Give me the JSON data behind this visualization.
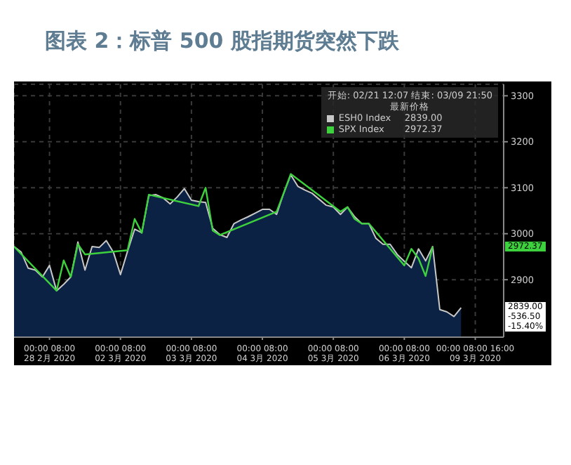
{
  "chart_data": {
    "type": "line",
    "title": "图表 2：标普 500 股指期货突然下跌",
    "categories": [
      null,
      null,
      null,
      null,
      null,
      "00:00  08:00\n28 2月 2020",
      null,
      null,
      null,
      null,
      null,
      null,
      null,
      null,
      null,
      "00:00  08:00\n02 3月 2020",
      null,
      null,
      null,
      null,
      null,
      null,
      null,
      null,
      null,
      "00:00  08:00\n03 3月 2020",
      null,
      null,
      null,
      null,
      null,
      null,
      null,
      null,
      null,
      "00:00  08:00\n04 3月 2020",
      null,
      null,
      null,
      null,
      null,
      null,
      null,
      null,
      null,
      "00:00  08:00\n05 3月 2020",
      null,
      null,
      null,
      null,
      null,
      null,
      null,
      null,
      null,
      "00:00  08:00\n06 3月 2020",
      null,
      null,
      null,
      null,
      null,
      null,
      null,
      null,
      null,
      "00:00  08:00  16:00\n09 3月 2020",
      null,
      null,
      null,
      null
    ],
    "ylim": [
      2775,
      3325
    ],
    "yticks": [
      2900,
      3000,
      3100,
      3200,
      3300
    ],
    "grid": true,
    "legend": "top right",
    "legend_title": "最新价格",
    "series": [
      {
        "name": "ESH0 Index",
        "type": "area",
        "color": "#c8c8c8",
        "values": [
          2972,
          2960,
          2925,
          2921,
          2906,
          2931,
          2876,
          2890,
          2906,
          2982,
          2921,
          2972,
          2970,
          2985,
          2960,
          2911,
          2962,
          3010,
          3002,
          3083,
          3085,
          3078,
          3065,
          3080,
          3098,
          3073,
          3070,
          3068,
          3012,
          2998,
          2992,
          3022,
          3030,
          3037,
          3045,
          3053,
          3053,
          3042,
          3088,
          3128,
          3103,
          3095,
          3088,
          3075,
          3062,
          3058,
          3042,
          3058,
          3037,
          3022,
          3022,
          2990,
          2977,
          2977,
          2955,
          2940,
          2926,
          2967,
          2941,
          2972,
          2835,
          2830,
          2820,
          2839,
          null,
          null,
          null,
          null,
          null,
          null
        ]
      },
      {
        "name": "SPX Index",
        "color": "#3ed13e",
        "values": [
          2972,
          null,
          null,
          null,
          null,
          null,
          2876,
          2942,
          2906,
          2977,
          2955,
          null,
          null,
          null,
          null,
          null,
          2964,
          3032,
          3002,
          3085,
          null,
          null,
          null,
          null,
          null,
          null,
          3060,
          3100,
          3007,
          2997,
          null,
          null,
          null,
          null,
          null,
          null,
          null,
          3048,
          3088,
          3130,
          null,
          null,
          null,
          null,
          null,
          null,
          3048,
          3058,
          3032,
          3022,
          3022,
          null,
          null,
          null,
          null,
          2931,
          2967,
          2946,
          2908,
          2972,
          null,
          null,
          null,
          null,
          null,
          null,
          null,
          null,
          null,
          null
        ]
      }
    ],
    "annotations": [
      "开始: 02/21 12:07 结束: 03/09 21:50",
      "2839.00",
      "2972.37",
      "2839.00",
      "2972.37",
      "-536.50",
      "-15.40%"
    ]
  }
}
